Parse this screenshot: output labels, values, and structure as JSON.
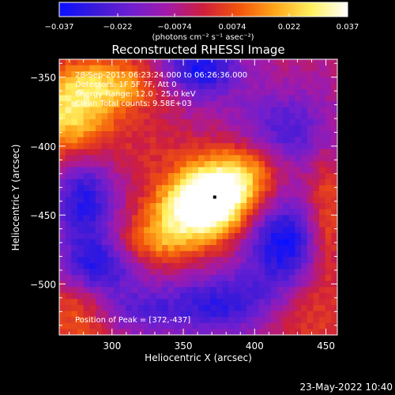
{
  "chart_data": {
    "type": "heatmap",
    "title": "Reconstructed RHESSI Image",
    "xlabel": "Heliocentric X (arcsec)",
    "ylabel": "Heliocentric Y (arcsec)",
    "xlim": [
      263,
      458
    ],
    "ylim": [
      -537,
      -337
    ],
    "xticks": [
      300,
      350,
      400,
      450
    ],
    "yticks": [
      -350,
      -400,
      -450,
      -500
    ],
    "colorbar": {
      "range": [
        -0.037,
        0.037
      ],
      "tick_values": [
        -0.037,
        -0.022,
        -0.0074,
        0.0074,
        0.022,
        0.037
      ],
      "tick_labels": [
        "−0.037",
        "−0.022",
        "−0.0074",
        "0.0074",
        "0.022",
        "0.037"
      ],
      "unit_label": "(photons cm⁻² s⁻¹ asec⁻²)",
      "colormap": [
        "#0a10ff",
        "#3a1ad8",
        "#6f1fcf",
        "#a21aa8",
        "#cf1f3c",
        "#f2550c",
        "#ffa81a",
        "#fff060",
        "#ffffff"
      ]
    },
    "annotations": [
      "28-Sep-2015 06:23:24.000 to 06:26:36.000",
      "Detectors: 1F 5F 7F, Att 0",
      "Energy Range: 12.0 - 25.0 keV",
      "Clean    Total counts: 9.58E+03"
    ],
    "peak_label": "Position of Peak = [372,-437]",
    "peak": [
      372,
      -437
    ],
    "sources": [
      {
        "x": 372,
        "y": -437,
        "peak": 0.037,
        "sx": 20,
        "sy": 18
      },
      {
        "x": 355,
        "y": -448,
        "peak": 0.03,
        "sx": 22,
        "sy": 18
      },
      {
        "x": 395,
        "y": -418,
        "peak": 0.022,
        "sx": 20,
        "sy": 18
      },
      {
        "x": 330,
        "y": -470,
        "peak": 0.016,
        "sx": 18,
        "sy": 12
      },
      {
        "x": 270,
        "y": -380,
        "peak": 0.03,
        "sx": 22,
        "sy": 22
      },
      {
        "x": 300,
        "y": -355,
        "peak": 0.024,
        "sx": 30,
        "sy": 14
      },
      {
        "x": 280,
        "y": -520,
        "peak": 0.022,
        "sx": 20,
        "sy": 20
      },
      {
        "x": 450,
        "y": -455,
        "peak": 0.018,
        "sx": 10,
        "sy": 35
      },
      {
        "x": 430,
        "y": -520,
        "peak": 0.014,
        "sx": 25,
        "sy": 18
      },
      {
        "x": 330,
        "y": -400,
        "peak": 0.006,
        "sx": 25,
        "sy": 15
      },
      {
        "x": 360,
        "y": -345,
        "peak": -0.03,
        "sx": 20,
        "sy": 15
      },
      {
        "x": 280,
        "y": -440,
        "peak": -0.026,
        "sx": 15,
        "sy": 25
      },
      {
        "x": 290,
        "y": -490,
        "peak": -0.028,
        "sx": 18,
        "sy": 15
      },
      {
        "x": 420,
        "y": -470,
        "peak": -0.03,
        "sx": 20,
        "sy": 25
      },
      {
        "x": 380,
        "y": -515,
        "peak": -0.025,
        "sx": 30,
        "sy": 15
      },
      {
        "x": 310,
        "y": -520,
        "peak": -0.018,
        "sx": 25,
        "sy": 12
      },
      {
        "x": 420,
        "y": -390,
        "peak": -0.02,
        "sx": 25,
        "sy": 20
      }
    ]
  },
  "footer": {
    "date": "23-May-2022 10:40"
  }
}
